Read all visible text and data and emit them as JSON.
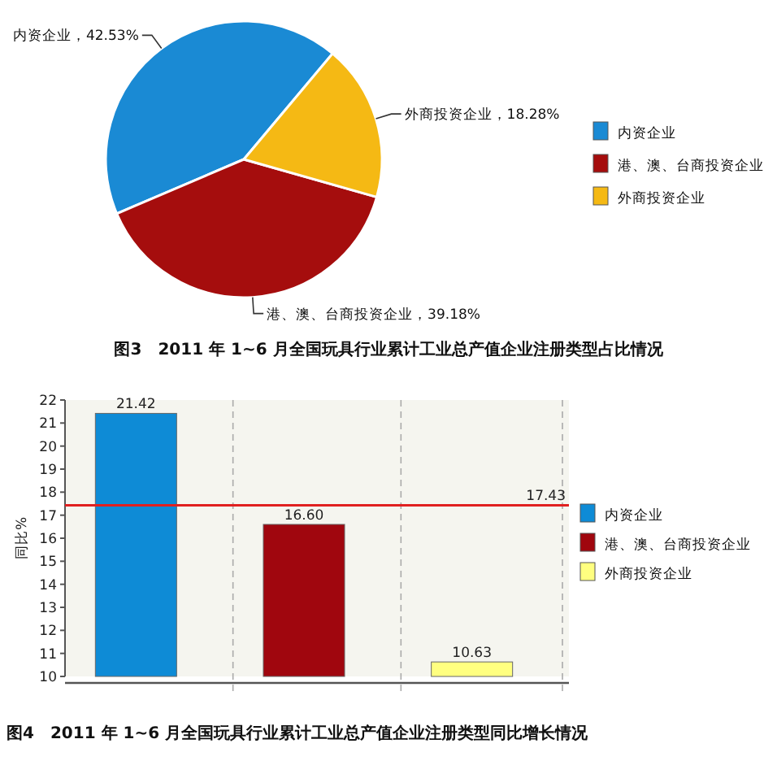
{
  "chart_data": [
    {
      "type": "pie",
      "title": "图3　2011 年 1~6 月全国玩具行业累计工业总产值企业注册类型占比情况",
      "categories": [
        "内资企业",
        "港、澳、台商投资企业",
        "外商投资企业"
      ],
      "values": [
        42.53,
        39.18,
        18.28
      ],
      "value_labels": [
        "，42.53%",
        "，39.18%",
        "，18.28%"
      ],
      "colors": [
        "#1a8ad4",
        "#a50d0d",
        "#f5b914"
      ],
      "legend": "right"
    },
    {
      "type": "bar",
      "title": "图4　2011 年 1~6 月全国玩具行业累计工业总产值企业注册类型同比增长情况",
      "ylabel": "同比%",
      "categories": [
        null,
        null,
        null
      ],
      "stacked": true,
      "series": [
        {
          "name": "内资企业",
          "color": "#0e8bd6",
          "values": [
            21.42,
            null,
            null
          ],
          "value_labels": [
            "21.42",
            null,
            null
          ]
        },
        {
          "name": "港、澳、台商投资企业",
          "color": "#a0060e",
          "values": [
            null,
            16.6,
            null
          ],
          "value_labels": [
            null,
            "16.60",
            null
          ]
        },
        {
          "name": "外商投资企业",
          "color": "#ffff80",
          "values": [
            null,
            null,
            10.63
          ],
          "value_labels": [
            null,
            null,
            "10.63"
          ]
        }
      ],
      "ylim": [
        10,
        22
      ],
      "yticks": [
        10,
        11,
        12,
        13,
        14,
        15,
        16,
        17,
        18,
        19,
        20,
        21,
        22
      ],
      "grid": "x",
      "legend": "right",
      "ref_lines": [
        {
          "axis": "y",
          "value": 17.43,
          "label": "17.43",
          "color": "#e02020"
        }
      ]
    }
  ]
}
